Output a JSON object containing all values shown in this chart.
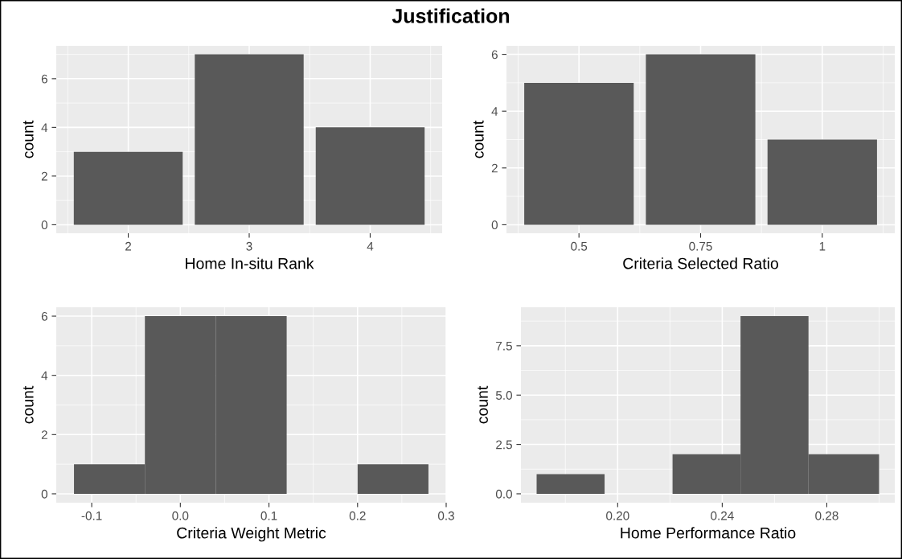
{
  "chart_data": [
    {
      "type": "bar",
      "title": "Justification",
      "xlabel": "Home In-situ Rank",
      "ylabel": "count",
      "x": [
        2,
        3,
        4
      ],
      "values": [
        3,
        7,
        4
      ],
      "color": "#595959",
      "xlim": [
        1.405,
        4.595
      ],
      "ylim": [
        -0.35,
        7.35
      ],
      "xticks": [
        2,
        3,
        4
      ],
      "yticks": [
        0,
        2,
        4,
        6
      ],
      "grid": true
    },
    {
      "type": "bar",
      "xlabel": "Criteria Selected Ratio",
      "ylabel": "count",
      "x": [
        0.5,
        0.75,
        1
      ],
      "values": [
        5,
        6,
        3
      ],
      "color": "#595959",
      "xlim": [
        0.351,
        1.149
      ],
      "ylim": [
        -0.3,
        6.3
      ],
      "xticks": [
        0.5,
        0.75,
        1
      ],
      "yticks": [
        0,
        2,
        4,
        6
      ],
      "grid": true
    },
    {
      "type": "histogram",
      "xlabel": "Criteria Weight Metric",
      "ylabel": "count",
      "bins": [
        -0.12,
        -0.04,
        0.04,
        0.12,
        0.2,
        0.28
      ],
      "values": [
        1,
        6,
        6,
        0,
        1
      ],
      "color": "#595959",
      "xlim": [
        -0.14,
        0.3
      ],
      "ylim": [
        -0.3,
        6.3
      ],
      "xticks": [
        -0.1,
        {
          "value": 0.0,
          "label": "0.0"
        },
        0.1,
        0.2,
        0.3
      ],
      "yticks": [
        0,
        2,
        4,
        6
      ],
      "grid": true
    },
    {
      "type": "histogram",
      "xlabel": "Home Performance Ratio",
      "ylabel": "count",
      "bins": [
        0.169,
        0.195,
        0.221,
        0.247,
        0.273,
        0.3
      ],
      "values": [
        1,
        0,
        2,
        9,
        2
      ],
      "color": "#595959",
      "xlim": [
        0.163,
        0.306
      ],
      "ylim": [
        -0.45,
        9.45
      ],
      "xticks": [
        {
          "value": 0.2,
          "label": "0.20"
        },
        {
          "value": 0.24,
          "label": "0.24"
        },
        {
          "value": 0.28,
          "label": "0.28"
        }
      ],
      "yticks": [
        {
          "value": 0,
          "label": "0.0"
        },
        {
          "value": 2.5,
          "label": "2.5"
        },
        {
          "value": 5,
          "label": "5.0"
        },
        {
          "value": 7.5,
          "label": "7.5"
        }
      ],
      "grid": true
    }
  ]
}
